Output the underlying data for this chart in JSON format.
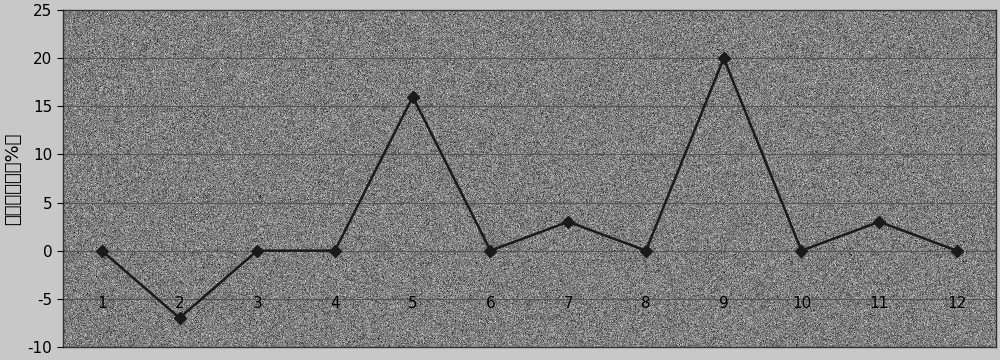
{
  "x": [
    1,
    2,
    3,
    4,
    5,
    6,
    7,
    8,
    9,
    10,
    11,
    12
  ],
  "y": [
    0,
    -7,
    0,
    0,
    16,
    0,
    3,
    0,
    20,
    0,
    3,
    0
  ],
  "ylim": [
    -10,
    25
  ],
  "yticks": [
    -10,
    -5,
    0,
    5,
    10,
    15,
    20,
    25
  ],
  "xticks": [
    1,
    2,
    3,
    4,
    5,
    6,
    7,
    8,
    9,
    10,
    11,
    12
  ],
  "ylabel": "相对通近度（%）",
  "line_color": "#1a1a1a",
  "marker": "D",
  "marker_size": 6,
  "marker_color": "#1a1a1a",
  "bg_color": "#aaaaaa",
  "grid_color": "#555555",
  "line_width": 1.8,
  "fig_bg": "#c8c8c8",
  "xlabel_y_data": -5.5,
  "tick_fontsize": 11,
  "ylabel_fontsize": 13
}
